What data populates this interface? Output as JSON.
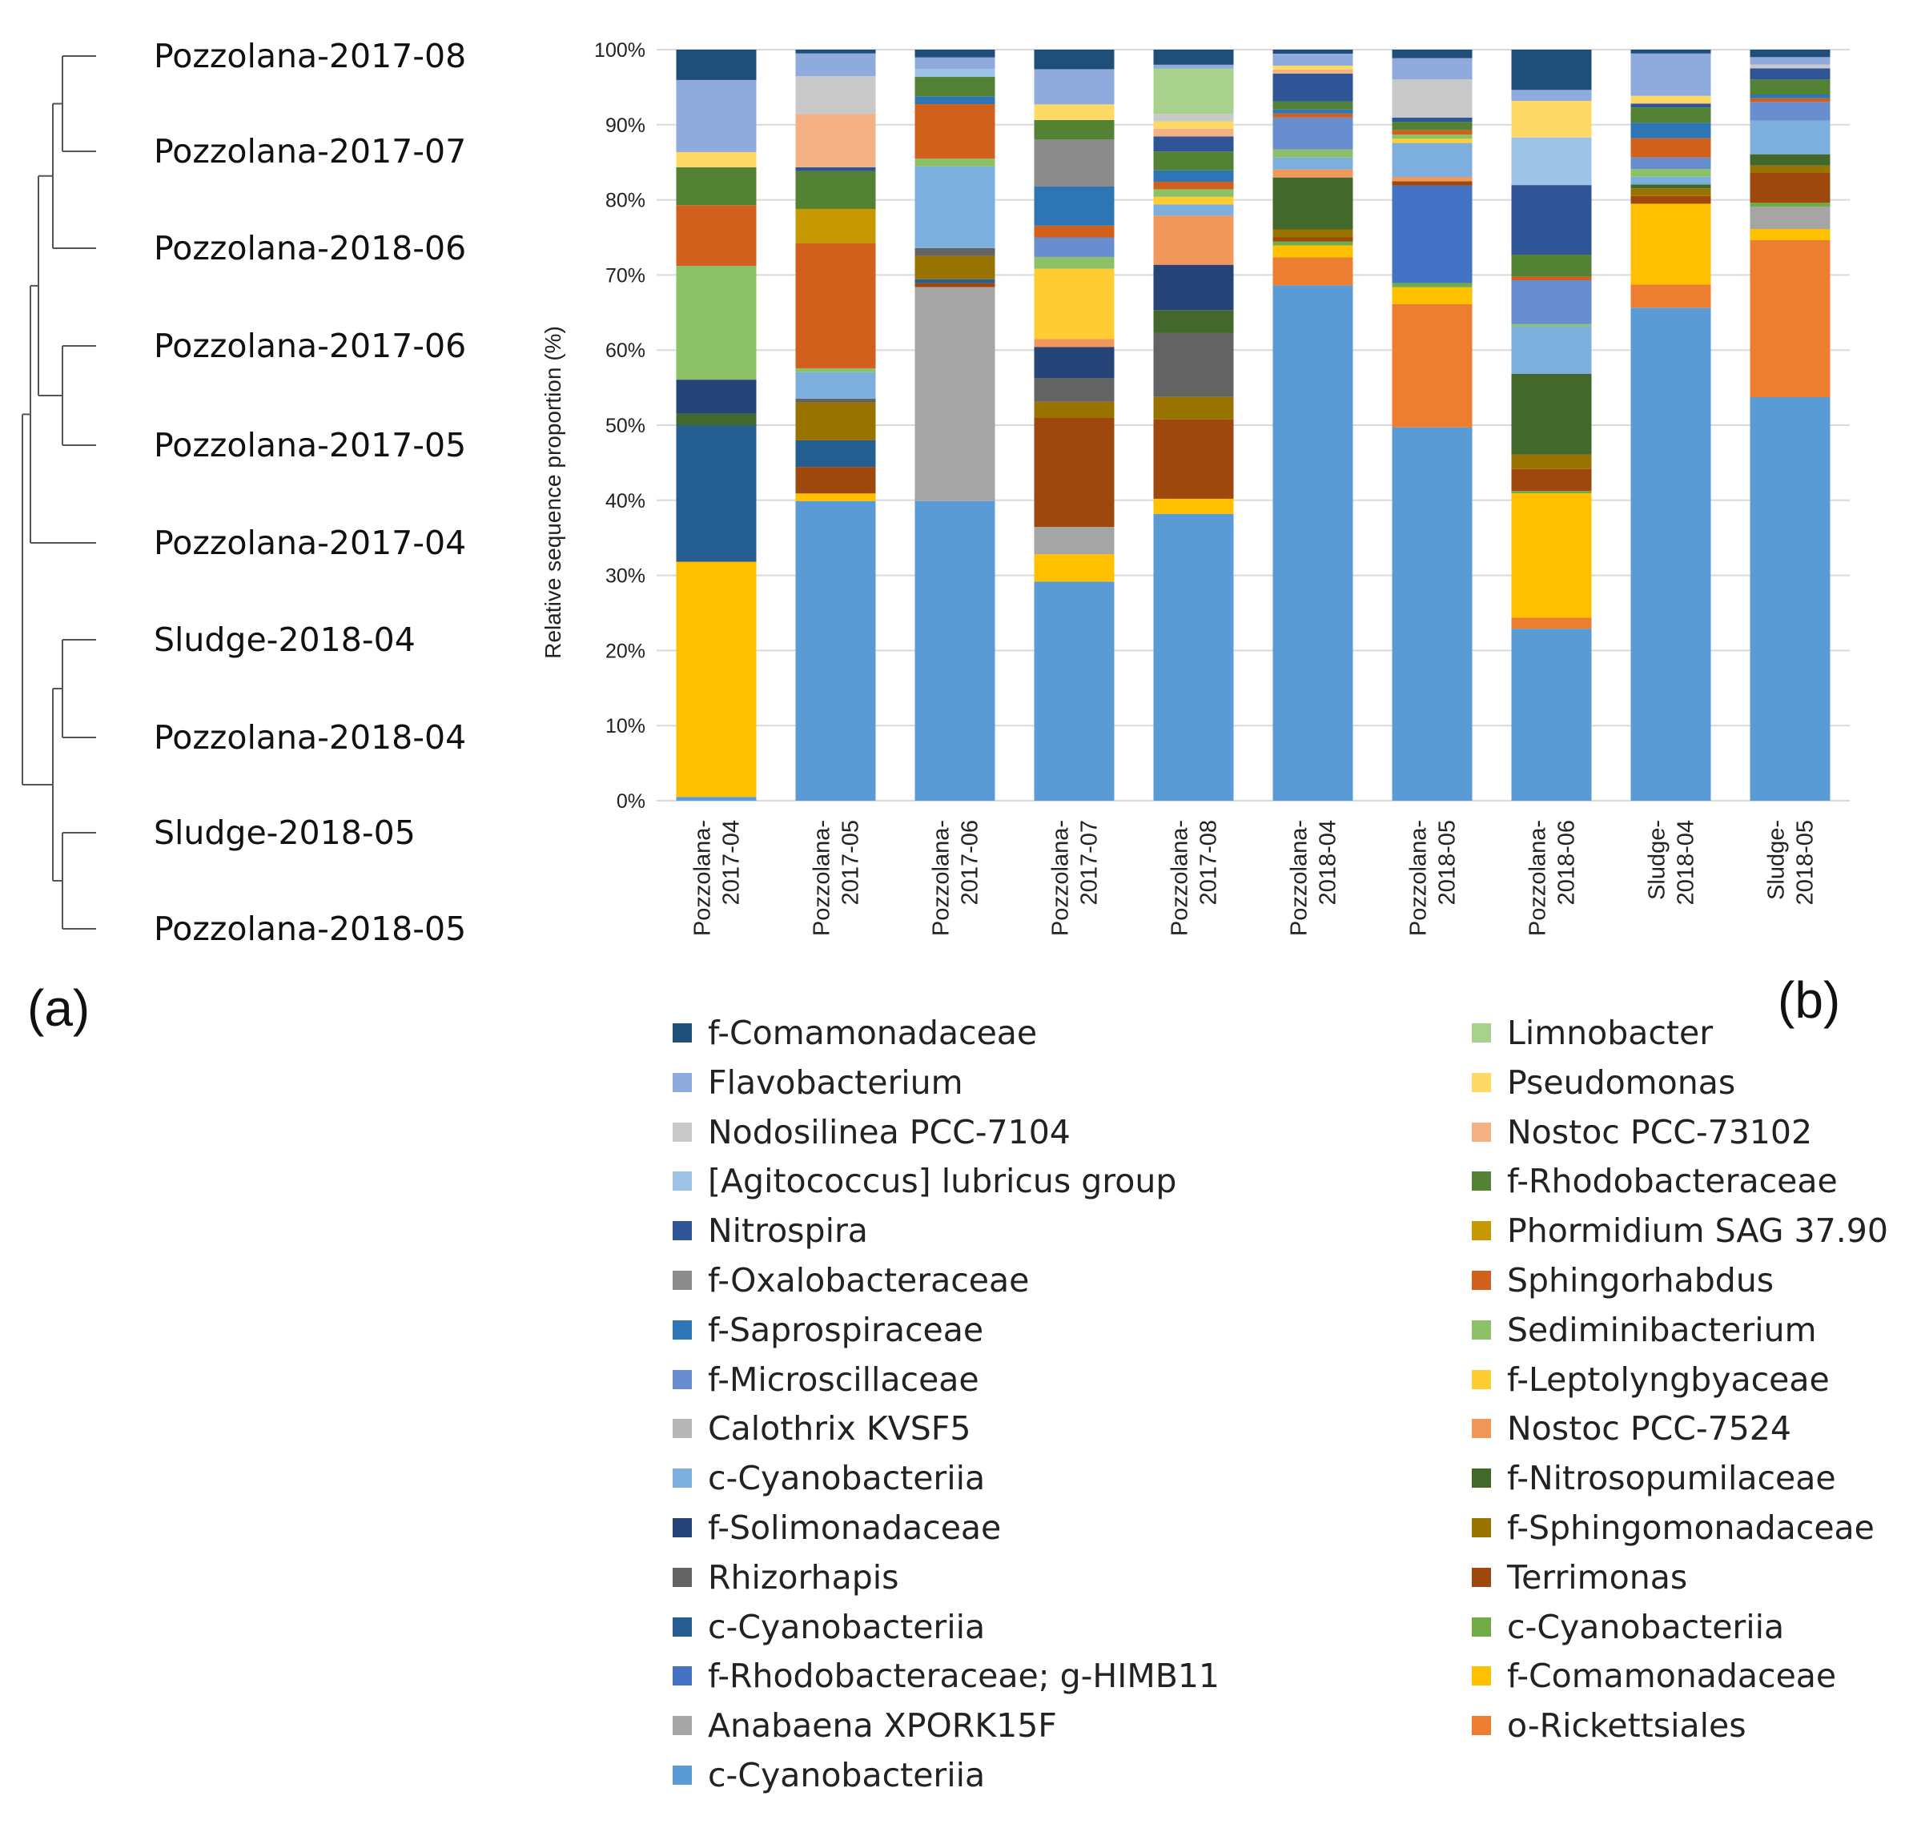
{
  "panel_labels": {
    "a": "(a)",
    "b": "(b)"
  },
  "dendrogram": {
    "leaves": [
      "Pozzolana-2017-08",
      "Pozzolana-2017-07",
      "Pozzolana-2018-06",
      "Pozzolana-2017-06",
      "Pozzolana-2017-05",
      "Pozzolana-2017-04",
      "Sludge-2018-04",
      "Pozzolana-2018-04",
      "Sludge-2018-05",
      "Pozzolana-2018-05"
    ]
  },
  "chart_data": {
    "type": "bar",
    "stacked": true,
    "title": "",
    "xlabel": "",
    "ylabel": "Relative sequence proportion (%)",
    "ylim": [
      0,
      100
    ],
    "yticks": [
      "0%",
      "10%",
      "20%",
      "30%",
      "40%",
      "50%",
      "60%",
      "70%",
      "80%",
      "90%",
      "100%"
    ],
    "grid": true,
    "legend_position": "bottom",
    "categories": [
      [
        "Pozzolana-",
        "2017-04"
      ],
      [
        "Pozzolana-",
        "2017-05"
      ],
      [
        "Pozzolana-",
        "2017-06"
      ],
      [
        "Pozzolana-",
        "2017-07"
      ],
      [
        "Pozzolana-",
        "2017-08"
      ],
      [
        "Pozzolana-",
        "2018-04"
      ],
      [
        "Pozzolana-",
        "2018-05"
      ],
      [
        "Pozzolana-",
        "2018-06"
      ],
      [
        "Sludge-",
        "2018-04"
      ],
      [
        "Sludge-",
        "2018-05"
      ]
    ],
    "series": [
      {
        "name": "c-Cyanobacteriia",
        "color": "#5B9BD5",
        "values": [
          0.5,
          39.5,
          38.5,
          28,
          38,
          64.5,
          44,
          23.5,
          64,
          54
        ]
      },
      {
        "name": "o-Rickettsiales",
        "color": "#ED7D31",
        "values": [
          0,
          0,
          0,
          0,
          0,
          3.5,
          14.5,
          1.5,
          3,
          21
        ]
      },
      {
        "name": "f-Comamonadaceae",
        "color": "#FFC000",
        "values": [
          31,
          1,
          0,
          3.5,
          2,
          1.5,
          2,
          17,
          10.5,
          1.5
        ]
      },
      {
        "name": "Anabaena XPORK15F",
        "color": "#A5A5A5",
        "values": [
          0,
          0,
          27.5,
          3.5,
          0,
          0,
          0,
          0,
          0,
          3
        ]
      },
      {
        "name": "c-Cyanobacteriia",
        "color": "#70AD47",
        "values": [
          0,
          0,
          0,
          0,
          0,
          0.5,
          0.5,
          0.3,
          0,
          0.5
        ]
      },
      {
        "name": "f-Rhodobacteraceae; g-HIMB11",
        "color": "#4472C4",
        "values": [
          0,
          0,
          0,
          0,
          0,
          0,
          11.5,
          0,
          0,
          0
        ]
      },
      {
        "name": "Terrimonas",
        "color": "#9E480E",
        "values": [
          0,
          3.5,
          0.5,
          14,
          10.5,
          0.5,
          0.5,
          3,
          1,
          4
        ]
      },
      {
        "name": "c-Cyanobacteriia",
        "color": "#255E91",
        "values": [
          18,
          3.5,
          0.5,
          0,
          0,
          0,
          0,
          0,
          0,
          0
        ]
      },
      {
        "name": "f-Sphingomonadaceae",
        "color": "#997300",
        "values": [
          0,
          5,
          3,
          2,
          3,
          1,
          0,
          2,
          1,
          1
        ]
      },
      {
        "name": "Rhizorhapis",
        "color": "#636363",
        "values": [
          0,
          0.5,
          1,
          3,
          8.5,
          0,
          0,
          0,
          0,
          0
        ]
      },
      {
        "name": "f-Nitrosopumilaceae",
        "color": "#43682B",
        "values": [
          1.5,
          0,
          0,
          0,
          3,
          6.5,
          0,
          11,
          0.5,
          1.5
        ]
      },
      {
        "name": "f-Solimonadaceae",
        "color": "#264478",
        "values": [
          4.5,
          0,
          0,
          4,
          6,
          0,
          0,
          0,
          0,
          0
        ]
      },
      {
        "name": "Nostoc PCC-7524",
        "color": "#F1975A",
        "values": [
          0,
          0,
          0,
          1,
          6.5,
          1,
          0.5,
          0,
          0,
          0
        ]
      },
      {
        "name": "c-Cyanobacteriia",
        "color": "#7CAFDD",
        "values": [
          0,
          3.5,
          10.5,
          0,
          1.5,
          1.5,
          4,
          6.5,
          1,
          4.5
        ]
      },
      {
        "name": "f-Leptolyngbyaceae",
        "color": "#FFCD33",
        "values": [
          0,
          0,
          0,
          9,
          1,
          0,
          0.5,
          0,
          0,
          0
        ]
      },
      {
        "name": "Calothrix KVSF5",
        "color": "#B7B7B7",
        "values": [
          0,
          0,
          0,
          0,
          0,
          0,
          0,
          0,
          0,
          0
        ]
      },
      {
        "name": "Sediminibacterium",
        "color": "#8CC168",
        "values": [
          15,
          0.5,
          1,
          1.5,
          1,
          1,
          0.5,
          0.3,
          1,
          0
        ]
      },
      {
        "name": "f-Microscillaceae",
        "color": "#698ED0",
        "values": [
          0,
          0,
          0,
          2.5,
          0,
          4,
          0,
          6,
          1.5,
          2.5
        ]
      },
      {
        "name": "Sphingorhabdus",
        "color": "#D0601C",
        "values": [
          8,
          16.5,
          7,
          1.5,
          1,
          0.5,
          0.5,
          0.5,
          2.5,
          0.5
        ]
      },
      {
        "name": "f-Saprospiraceae",
        "color": "#2E75B6",
        "values": [
          0,
          0,
          1,
          5,
          1.5,
          0.5,
          0,
          0,
          2,
          0.5
        ]
      },
      {
        "name": "Phormidium SAG 37.90",
        "color": "#C89800",
        "values": [
          0,
          4.5,
          0,
          0,
          0,
          0,
          0,
          0,
          0,
          0
        ]
      },
      {
        "name": "f-Oxalobacteraceae",
        "color": "#8B8B8B",
        "values": [
          0,
          0,
          0,
          6,
          0,
          0,
          0,
          0,
          0,
          0
        ]
      },
      {
        "name": "f-Rhodobacteraceae",
        "color": "#548235",
        "values": [
          5,
          5,
          2.5,
          2.5,
          2.5,
          1,
          1,
          3,
          2,
          2
        ]
      },
      {
        "name": "Nitrospira",
        "color": "#2F5597",
        "values": [
          0,
          0.5,
          0,
          0,
          2,
          3.5,
          0.5,
          9.5,
          0.5,
          1.5
        ]
      },
      {
        "name": "Nostoc PCC-73102",
        "color": "#F4B183",
        "values": [
          0,
          7,
          0,
          0,
          1,
          0.5,
          0,
          0,
          0,
          0
        ]
      },
      {
        "name": "[Agitococcus] lubricus group",
        "color": "#9DC3E6",
        "values": [
          0,
          0,
          1,
          0,
          0,
          0,
          0,
          6.5,
          0,
          0
        ]
      },
      {
        "name": "Pseudomonas",
        "color": "#FFD966",
        "values": [
          2,
          0,
          0,
          2,
          1,
          0.5,
          0,
          5,
          1,
          0
        ]
      },
      {
        "name": "Nodosilinea PCC-7104",
        "color": "#C9C9C9",
        "values": [
          0,
          5,
          0,
          0,
          1,
          0,
          4.5,
          0,
          0,
          0.5
        ]
      },
      {
        "name": "Limnobacter",
        "color": "#A9D18E",
        "values": [
          0,
          0,
          0,
          0,
          6,
          0,
          0,
          0,
          0,
          0
        ]
      },
      {
        "name": "Flavobacterium",
        "color": "#8FAADC",
        "values": [
          9.5,
          3,
          1.5,
          4.5,
          0.5,
          1.5,
          2.5,
          1.5,
          5.5,
          1
        ]
      },
      {
        "name": "f-Comamonadaceae",
        "color": "#1F4E79",
        "values": [
          4,
          0.5,
          1,
          2.5,
          2,
          0.5,
          1,
          5.5,
          0.5,
          1
        ]
      }
    ]
  },
  "legend": {
    "left": [
      {
        "label": "f-Comamonadaceae",
        "color": "#1F4E79"
      },
      {
        "label": "Flavobacterium",
        "color": "#8FAADC"
      },
      {
        "label": "Nodosilinea PCC-7104",
        "color": "#C9C9C9"
      },
      {
        "label": "[Agitococcus] lubricus group",
        "color": "#9DC3E6"
      },
      {
        "label": "Nitrospira",
        "color": "#2F5597"
      },
      {
        "label": "f-Oxalobacteraceae",
        "color": "#8B8B8B"
      },
      {
        "label": "f-Saprospiraceae",
        "color": "#2E75B6"
      },
      {
        "label": "f-Microscillaceae",
        "color": "#698ED0"
      },
      {
        "label": "Calothrix KVSF5",
        "color": "#B7B7B7"
      },
      {
        "label": "c-Cyanobacteriia",
        "color": "#7CAFDD"
      },
      {
        "label": "f-Solimonadaceae",
        "color": "#264478"
      },
      {
        "label": "Rhizorhapis",
        "color": "#636363"
      },
      {
        "label": "c-Cyanobacteriia",
        "color": "#255E91"
      },
      {
        "label": "f-Rhodobacteraceae; g-HIMB11",
        "color": "#4472C4"
      },
      {
        "label": "Anabaena XPORK15F",
        "color": "#A5A5A5"
      },
      {
        "label": "c-Cyanobacteriia",
        "color": "#5B9BD5"
      }
    ],
    "right": [
      {
        "label": "Limnobacter",
        "color": "#A9D18E"
      },
      {
        "label": "Pseudomonas",
        "color": "#FFD966"
      },
      {
        "label": "Nostoc PCC-73102",
        "color": "#F4B183"
      },
      {
        "label": "f-Rhodobacteraceae",
        "color": "#548235"
      },
      {
        "label": "Phormidium SAG 37.90",
        "color": "#C89800"
      },
      {
        "label": "Sphingorhabdus",
        "color": "#D0601C"
      },
      {
        "label": "Sediminibacterium",
        "color": "#8CC168"
      },
      {
        "label": "f-Leptolyngbyaceae",
        "color": "#FFCD33"
      },
      {
        "label": "Nostoc PCC-7524",
        "color": "#F1975A"
      },
      {
        "label": "f-Nitrosopumilaceae",
        "color": "#43682B"
      },
      {
        "label": "f-Sphingomonadaceae",
        "color": "#997300"
      },
      {
        "label": "Terrimonas",
        "color": "#9E480E"
      },
      {
        "label": "c-Cyanobacteriia",
        "color": "#70AD47"
      },
      {
        "label": "f-Comamonadaceae",
        "color": "#FFC000"
      },
      {
        "label": "o-Rickettsiales",
        "color": "#ED7D31"
      }
    ]
  }
}
